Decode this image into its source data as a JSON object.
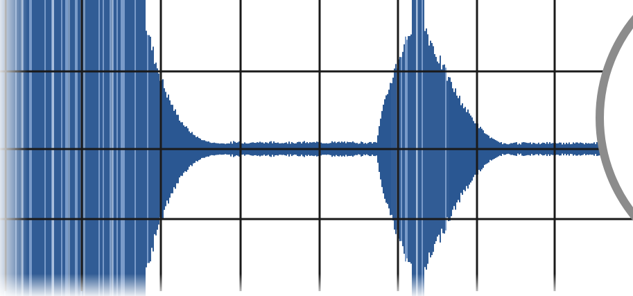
{
  "figure": {
    "kind": "waveform-on-grid-with-magnifier-edge",
    "colors": {
      "background": "#ffffff",
      "grid": "#1a1a1a",
      "waveform": "#1f4e8c",
      "waveform_light": "#6f93c4",
      "magnifier_ring": "#8c8c8c"
    },
    "grid": {
      "columns": 8,
      "rows": 4
    },
    "signal": {
      "segments": [
        {
          "name": "sustained-burst",
          "start": 0.0,
          "end": 0.23,
          "amplitude": 1.0
        },
        {
          "name": "decay-tail",
          "start": 0.23,
          "end": 0.6,
          "amplitude": 0.06
        },
        {
          "name": "second-burst",
          "start": 0.6,
          "end": 0.77,
          "amplitude": 1.0
        },
        {
          "name": "quiet-tail",
          "start": 0.77,
          "end": 1.0,
          "amplitude": 0.05
        }
      ]
    },
    "icons": [
      "magnifier-lens-icon"
    ]
  }
}
